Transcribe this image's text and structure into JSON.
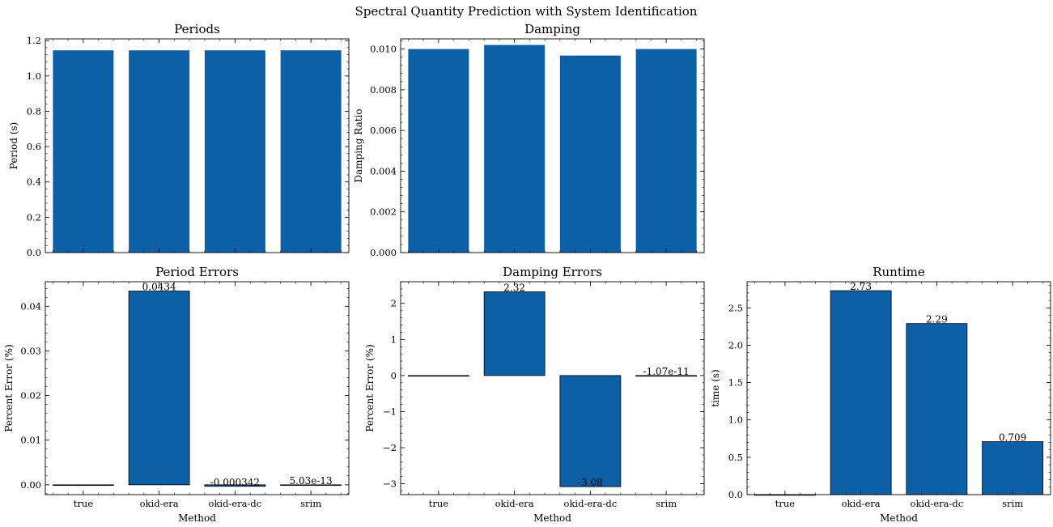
{
  "suptitle": "Spectral Quantity Prediction with System Identification",
  "colors": {
    "bar": "#0d5fa6",
    "axis": "#000000",
    "background": "#ffffff"
  },
  "chart_data": [
    {
      "id": "periods",
      "type": "bar",
      "title": "Periods",
      "xlabel": "",
      "ylabel": "Period (s)",
      "categories": [
        "true",
        "okid-era",
        "okid-era-dc",
        "srim"
      ],
      "show_xticklabels": false,
      "values": [
        1.145,
        1.145,
        1.145,
        1.145
      ],
      "ylim": [
        0,
        1.21
      ],
      "yticks": [
        0.0,
        0.2,
        0.4,
        0.6,
        0.8,
        1.0,
        1.2
      ],
      "ytick_labels": [
        "0.0",
        "0.2",
        "0.4",
        "0.6",
        "0.8",
        "1.0",
        "1.2"
      ],
      "bar_edge": false,
      "data_labels": null
    },
    {
      "id": "damping",
      "type": "bar",
      "title": "Damping",
      "xlabel": "",
      "ylabel": "Damping Ratio",
      "categories": [
        "true",
        "okid-era",
        "okid-era-dc",
        "srim"
      ],
      "show_xticklabels": false,
      "values": [
        0.01,
        0.0102,
        0.00968,
        0.01
      ],
      "ylim": [
        0,
        0.0105
      ],
      "yticks": [
        0.0,
        0.002,
        0.004,
        0.006,
        0.008,
        0.01
      ],
      "ytick_labels": [
        "0.000",
        "0.002",
        "0.004",
        "0.006",
        "0.008",
        "0.010"
      ],
      "bar_edge": false,
      "data_labels": null
    },
    {
      "id": "period-errors",
      "type": "bar",
      "title": "Period Errors",
      "xlabel": "Method",
      "ylabel": "Percent Error (%)",
      "categories": [
        "true",
        "okid-era",
        "okid-era-dc",
        "srim"
      ],
      "show_xticklabels": true,
      "values": [
        0,
        0.0434,
        -0.000342,
        5.03e-13
      ],
      "ylim": [
        -0.0022,
        0.0455
      ],
      "yticks": [
        0.0,
        0.01,
        0.02,
        0.03,
        0.04
      ],
      "ytick_labels": [
        "0.00",
        "0.01",
        "0.02",
        "0.03",
        "0.04"
      ],
      "bar_edge": true,
      "data_labels": [
        "",
        "0.0434",
        "-0.000342",
        "5.03e-13"
      ]
    },
    {
      "id": "damping-errors",
      "type": "bar",
      "title": "Damping Errors",
      "xlabel": "Method",
      "ylabel": "Percent Error (%)",
      "categories": [
        "true",
        "okid-era",
        "okid-era-dc",
        "srim"
      ],
      "show_xticklabels": true,
      "values": [
        0,
        2.32,
        -3.08,
        -1.07e-11
      ],
      "ylim": [
        -3.3,
        2.6
      ],
      "yticks": [
        -3,
        -2,
        -1,
        0,
        1,
        2
      ],
      "ytick_labels": [
        "−3",
        "−2",
        "−1",
        "0",
        "1",
        "2"
      ],
      "bar_edge": true,
      "data_labels": [
        "",
        "2.32",
        "-3.08",
        "-1.07e-11"
      ]
    },
    {
      "id": "runtime",
      "type": "bar",
      "title": "Runtime",
      "xlabel": "Method",
      "ylabel": "time (s)",
      "categories": [
        "true",
        "okid-era",
        "okid-era-dc",
        "srim"
      ],
      "show_xticklabels": true,
      "values": [
        0,
        2.73,
        2.29,
        0.709
      ],
      "ylim": [
        0,
        2.85
      ],
      "yticks": [
        0.0,
        0.5,
        1.0,
        1.5,
        2.0,
        2.5
      ],
      "ytick_labels": [
        "0.0",
        "0.5",
        "1.0",
        "1.5",
        "2.0",
        "2.5"
      ],
      "bar_edge": true,
      "data_labels": [
        "",
        "2.73",
        "2.29",
        "0.709"
      ]
    }
  ]
}
